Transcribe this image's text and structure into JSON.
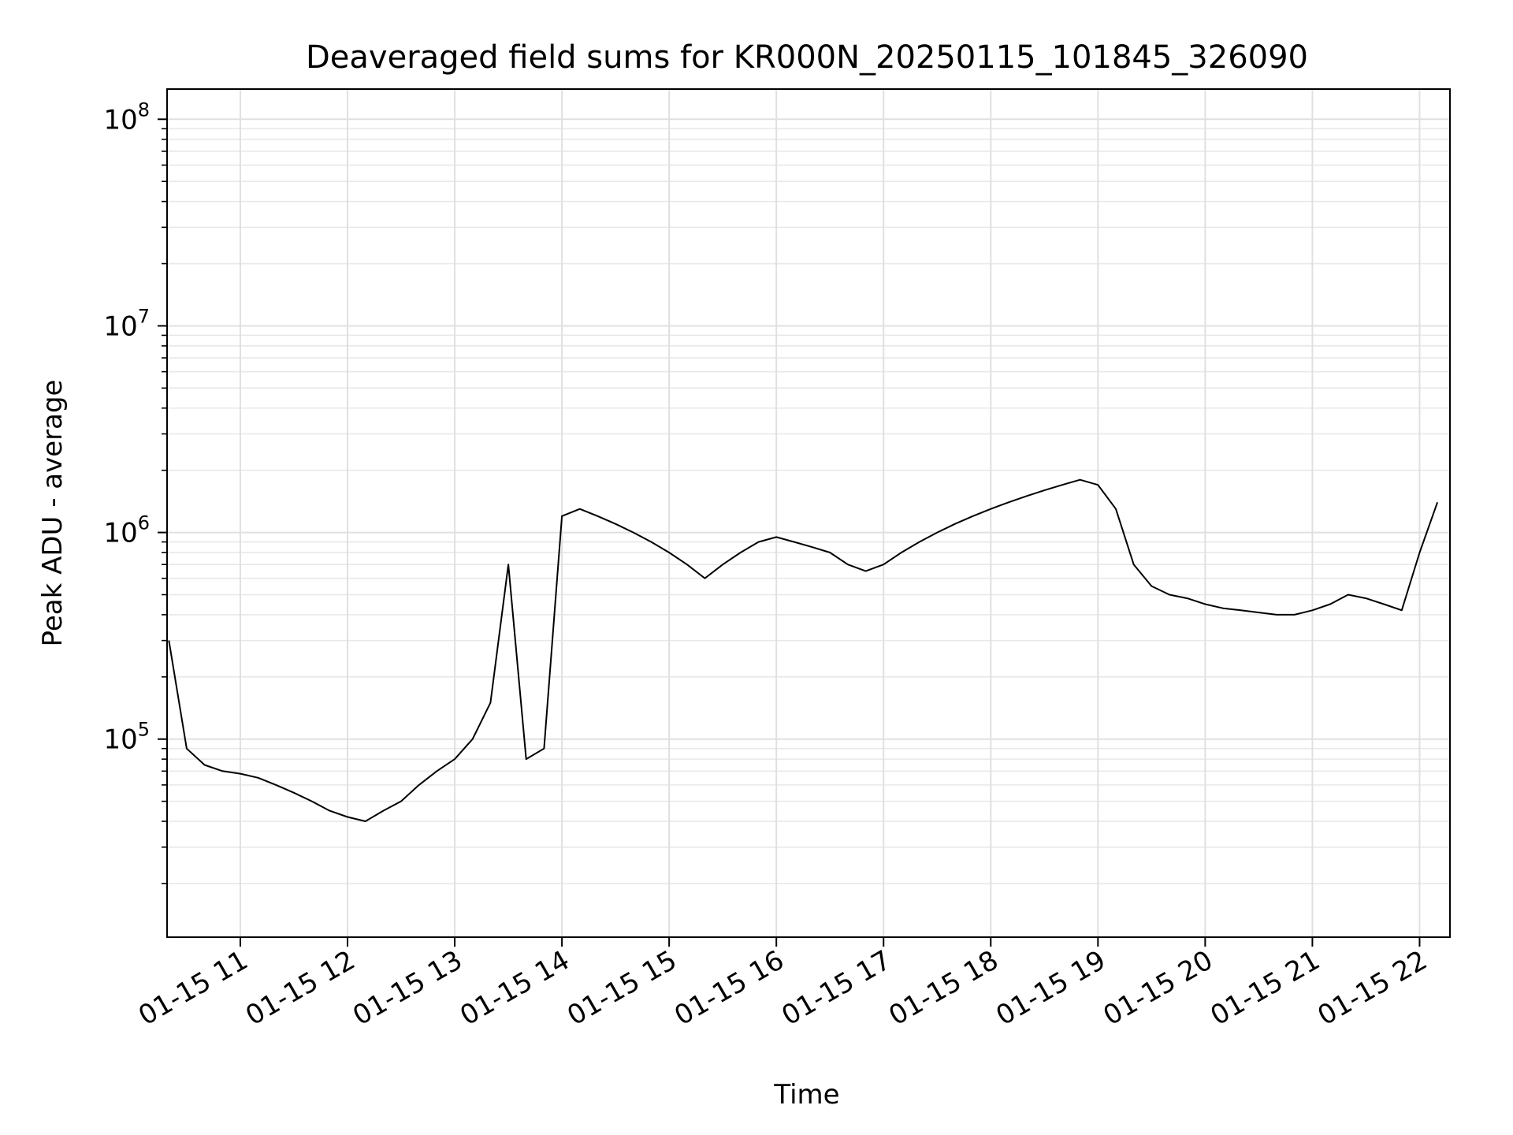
{
  "chart_data": {
    "type": "line",
    "title": "Deaveraged field sums for KR000N_20250115_101845_326090",
    "xlabel": "Time",
    "ylabel": "Peak ADU - average",
    "yscale": "log",
    "ylim": [
      11000,
      140000000
    ],
    "xlim": [
      "2025-01-15 10:19",
      "2025-01-15 22:17"
    ],
    "x_tick_labels": [
      "01-15 11",
      "01-15 12",
      "01-15 13",
      "01-15 14",
      "01-15 15",
      "01-15 16",
      "01-15 17",
      "01-15 18",
      "01-15 19",
      "01-15 20",
      "01-15 21",
      "01-15 22"
    ],
    "y_ticks": [
      {
        "base": "10",
        "exp": "5"
      },
      {
        "base": "10",
        "exp": "6"
      },
      {
        "base": "10",
        "exp": "7"
      },
      {
        "base": "10",
        "exp": "8"
      }
    ],
    "grid": true,
    "legend": false,
    "line_color": "#000000",
    "series": [
      {
        "x": [
          "2025-01-15 10:20",
          "2025-01-15 10:30",
          "2025-01-15 10:40",
          "2025-01-15 10:50",
          "2025-01-15 11:00",
          "2025-01-15 11:10",
          "2025-01-15 11:20",
          "2025-01-15 11:30",
          "2025-01-15 11:40",
          "2025-01-15 11:50",
          "2025-01-15 12:00",
          "2025-01-15 12:10",
          "2025-01-15 12:20",
          "2025-01-15 12:30",
          "2025-01-15 12:40",
          "2025-01-15 12:50",
          "2025-01-15 13:00",
          "2025-01-15 13:10",
          "2025-01-15 13:20",
          "2025-01-15 13:30",
          "2025-01-15 13:40",
          "2025-01-15 13:50",
          "2025-01-15 14:00",
          "2025-01-15 14:10",
          "2025-01-15 14:20",
          "2025-01-15 14:30",
          "2025-01-15 14:40",
          "2025-01-15 14:50",
          "2025-01-15 15:00",
          "2025-01-15 15:10",
          "2025-01-15 15:20",
          "2025-01-15 15:30",
          "2025-01-15 15:40",
          "2025-01-15 15:50",
          "2025-01-15 16:00",
          "2025-01-15 16:10",
          "2025-01-15 16:20",
          "2025-01-15 16:30",
          "2025-01-15 16:40",
          "2025-01-15 16:50",
          "2025-01-15 17:00",
          "2025-01-15 17:10",
          "2025-01-15 17:20",
          "2025-01-15 17:30",
          "2025-01-15 17:40",
          "2025-01-15 17:50",
          "2025-01-15 18:00",
          "2025-01-15 18:10",
          "2025-01-15 18:20",
          "2025-01-15 18:30",
          "2025-01-15 18:40",
          "2025-01-15 18:50",
          "2025-01-15 19:00",
          "2025-01-15 19:10",
          "2025-01-15 19:20",
          "2025-01-15 19:30",
          "2025-01-15 19:40",
          "2025-01-15 19:50",
          "2025-01-15 20:00",
          "2025-01-15 20:10",
          "2025-01-15 20:20",
          "2025-01-15 20:30",
          "2025-01-15 20:40",
          "2025-01-15 20:50",
          "2025-01-15 21:00",
          "2025-01-15 21:10",
          "2025-01-15 21:20",
          "2025-01-15 21:30",
          "2025-01-15 21:40",
          "2025-01-15 21:50",
          "2025-01-15 22:00",
          "2025-01-15 22:10"
        ],
        "y": [
          300000,
          90000,
          75000,
          70000,
          68000,
          65000,
          60000,
          55000,
          50000,
          45000,
          42000,
          40000,
          45000,
          50000,
          60000,
          70000,
          80000,
          100000,
          150000,
          700000,
          80000,
          90000,
          1200000,
          1300000,
          1200000,
          1100000,
          1000000,
          900000,
          800000,
          700000,
          600000,
          700000,
          800000,
          900000,
          950000,
          900000,
          850000,
          800000,
          700000,
          650000,
          700000,
          800000,
          900000,
          1000000,
          1100000,
          1200000,
          1300000,
          1400000,
          1500000,
          1600000,
          1700000,
          1800000,
          1700000,
          1300000,
          700000,
          550000,
          500000,
          480000,
          450000,
          430000,
          420000,
          410000,
          400000,
          400000,
          420000,
          450000,
          500000,
          480000,
          450000,
          420000,
          800000,
          1400000
        ]
      }
    ]
  }
}
